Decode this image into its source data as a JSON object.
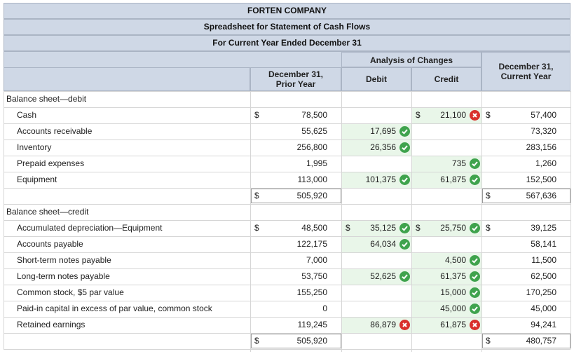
{
  "company": "FORTEN COMPANY",
  "subtitle": "Spreadsheet for Statement of Cash Flows",
  "period": "For Current Year Ended December 31",
  "analysis_header": "Analysis of Changes",
  "columns": {
    "prior": "December 31,\nPrior Year",
    "debit": "Debit",
    "credit": "Credit",
    "current": "December 31,\nCurrent Year"
  },
  "sections": {
    "debit_title": "Balance sheet—debit",
    "credit_title": "Balance sheet—credit"
  },
  "debit_rows": [
    {
      "label": "Cash",
      "prior": "78,500",
      "debit": "",
      "debit_status": "",
      "credit": "21,100",
      "credit_status": "wrong",
      "current": "57,400"
    },
    {
      "label": "Accounts receivable",
      "prior": "55,625",
      "debit": "17,695",
      "debit_status": "correct",
      "credit": "",
      "credit_status": "",
      "current": "73,320"
    },
    {
      "label": "Inventory",
      "prior": "256,800",
      "debit": "26,356",
      "debit_status": "correct",
      "credit": "",
      "credit_status": "",
      "current": "283,156"
    },
    {
      "label": "Prepaid expenses",
      "prior": "1,995",
      "debit": "",
      "debit_status": "",
      "credit": "735",
      "credit_status": "correct",
      "current": "1,260"
    },
    {
      "label": "Equipment",
      "prior": "113,000",
      "debit": "101,375",
      "debit_status": "correct",
      "credit": "61,875",
      "credit_status": "correct",
      "current": "152,500"
    }
  ],
  "debit_total": {
    "prior": "505,920",
    "current": "567,636"
  },
  "credit_rows": [
    {
      "label": "Accumulated depreciation—Equipment",
      "prior": "48,500",
      "debit": "35,125",
      "debit_status": "correct",
      "credit": "25,750",
      "credit_status": "correct",
      "current": "39,125"
    },
    {
      "label": "Accounts payable",
      "prior": "122,175",
      "debit": "64,034",
      "debit_status": "correct",
      "credit": "",
      "credit_status": "",
      "current": "58,141"
    },
    {
      "label": "Short-term notes payable",
      "prior": "7,000",
      "debit": "",
      "debit_status": "",
      "credit": "4,500",
      "credit_status": "correct",
      "current": "11,500"
    },
    {
      "label": "Long-term notes payable",
      "prior": "53,750",
      "debit": "52,625",
      "debit_status": "correct",
      "credit": "61,375",
      "credit_status": "correct",
      "current": "62,500"
    },
    {
      "label": "Common stock, $5 par value",
      "prior": "155,250",
      "debit": "",
      "debit_status": "",
      "credit": "15,000",
      "credit_status": "correct",
      "current": "170,250"
    },
    {
      "label": "Paid-in capital in excess of par value, common stock",
      "prior": "0",
      "debit": "",
      "debit_status": "",
      "credit": "45,000",
      "credit_status": "correct",
      "current": "45,000"
    },
    {
      "label": "Retained earnings",
      "prior": "119,245",
      "debit": "86,879",
      "debit_status": "wrong",
      "credit": "61,875",
      "credit_status": "wrong",
      "current": "94,241"
    }
  ],
  "credit_total": {
    "prior": "505,920",
    "current": "480,757"
  },
  "dollar_sign": "$",
  "colors": {
    "header_bg": "#cfd8e6",
    "answer_bg": "#e9f6e9",
    "correct": "#3fa34d",
    "wrong": "#d9302c"
  }
}
